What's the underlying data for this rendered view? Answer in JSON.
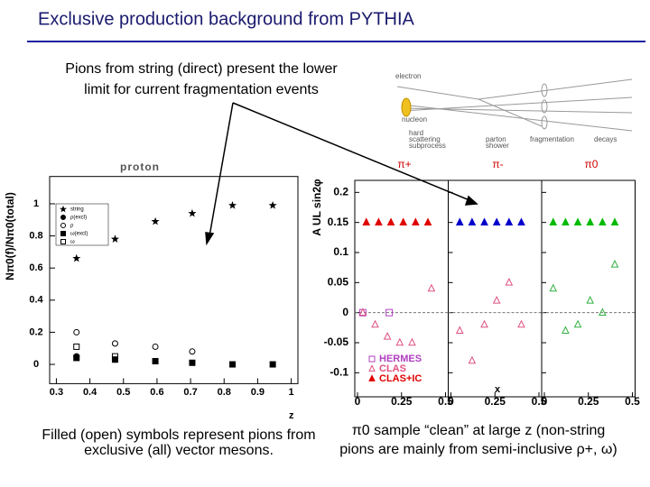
{
  "slide": {
    "title": "Exclusive production background from PYTHIA",
    "top_note": [
      "Pions from string (direct) present the lower",
      "limit for current fragmentation events"
    ],
    "left_note": [
      "Filled (open) symbols represent pions from",
      "exclusive (all) vector mesons."
    ],
    "right_note": [
      "π0 sample “clean” at large z (non-string",
      "pions are mainly from semi-inclusive ρ+, ω)"
    ]
  },
  "diagram": {
    "electron": "electron",
    "nucleon": "nucleon",
    "hard": [
      "hard",
      "scattering",
      "subprocess"
    ],
    "parton": [
      "parton",
      "shower"
    ],
    "fragmentation": "fragmentation",
    "decays": "decays"
  },
  "chart_data": [
    {
      "type": "scatter",
      "title": "proton",
      "xlabel": "z",
      "ylabel": "Nπ0(f)/Nπ0(total)",
      "xlim": [
        0.28,
        1.02
      ],
      "ylim": [
        -0.12,
        1.17
      ],
      "xticks": [
        0.3,
        0.4,
        0.5,
        0.6,
        0.7,
        0.8,
        0.9,
        1
      ],
      "yticks": [
        0,
        0.2,
        0.4,
        0.6,
        0.8,
        1
      ],
      "series": [
        {
          "name": "string",
          "marker": "star",
          "color": "#000000",
          "x": [
            0.36,
            0.475,
            0.595,
            0.705,
            0.825,
            0.945
          ],
          "values": [
            0.66,
            0.78,
            0.89,
            0.94,
            0.99,
            0.99
          ]
        },
        {
          "name": "ρ(excl)",
          "marker": "circle",
          "color": "#000000",
          "x": [
            0.36,
            0.475
          ],
          "values": [
            0.05,
            0.03
          ]
        },
        {
          "name": "ρ",
          "marker": "open-circle",
          "color": "#000000",
          "x": [
            0.36,
            0.475,
            0.595,
            0.705
          ],
          "values": [
            0.2,
            0.13,
            0.11,
            0.08
          ]
        },
        {
          "name": "ω(excl)",
          "marker": "square",
          "color": "#000000",
          "x": [
            0.36,
            0.475,
            0.595,
            0.705,
            0.825,
            0.945
          ],
          "values": [
            0.04,
            0.03,
            0.02,
            0.01,
            0,
            0
          ]
        },
        {
          "name": "ω",
          "marker": "open-square",
          "color": "#000000",
          "x": [
            0.36,
            0.475
          ],
          "values": [
            0.11,
            0.05
          ]
        }
      ]
    },
    {
      "type": "panels",
      "ylabel": "A UL sin2φ",
      "xlabel": "x",
      "xlim": [
        0,
        0.5
      ],
      "ylim": [
        -0.14,
        0.22
      ],
      "xticks": [
        0,
        0.25,
        0.5
      ],
      "yticks": [
        0.2,
        0.15,
        0.1,
        0.05,
        0,
        -0.05,
        -0.1
      ],
      "legend": [
        {
          "name": "HERMES",
          "marker": "open-square",
          "color": "#b040c0"
        },
        {
          "name": "CLAS",
          "marker": "open-triangle",
          "color": "#e05080"
        },
        {
          "name": "CLAS+IC",
          "marker": "triangle",
          "color": "#e00000"
        }
      ],
      "panels": [
        {
          "label": "π+",
          "series": [
            {
              "marker": "open-square",
              "color": "#b040c0",
              "x": [
                0.03,
                0.18
              ],
              "values": [
                0,
                0
              ]
            },
            {
              "marker": "open-triangle",
              "color": "#e05080",
              "x": [
                0.03,
                0.1,
                0.17,
                0.24,
                0.31,
                0.42
              ],
              "values": [
                0,
                -0.02,
                -0.04,
                -0.05,
                -0.05,
                0.04
              ]
            },
            {
              "marker": "triangle",
              "color": "#e00000",
              "x": [
                0.05,
                0.12,
                0.19,
                0.26,
                0.33,
                0.4
              ],
              "values": [
                0.15,
                0.15,
                0.15,
                0.15,
                0.15,
                0.15
              ]
            }
          ]
        },
        {
          "label": "π-",
          "series": [
            {
              "marker": "open-triangle",
              "color": "#e05080",
              "x": [
                0.05,
                0.12,
                0.19,
                0.26,
                0.33,
                0.4
              ],
              "values": [
                -0.03,
                -0.08,
                -0.02,
                0.02,
                0.05,
                -0.02
              ]
            },
            {
              "marker": "triangle",
              "color": "#0000cc",
              "x": [
                0.05,
                0.12,
                0.19,
                0.26,
                0.33,
                0.4
              ],
              "values": [
                0.15,
                0.15,
                0.15,
                0.15,
                0.15,
                0.15
              ]
            }
          ]
        },
        {
          "label": "π0",
          "series": [
            {
              "marker": "open-triangle",
              "color": "#30b040",
              "x": [
                0.05,
                0.12,
                0.19,
                0.26,
                0.33,
                0.4
              ],
              "values": [
                0.04,
                -0.03,
                -0.02,
                0.02,
                0,
                0.08
              ]
            },
            {
              "marker": "triangle",
              "color": "#00bb00",
              "x": [
                0.05,
                0.12,
                0.19,
                0.26,
                0.33,
                0.4
              ],
              "values": [
                0.15,
                0.15,
                0.15,
                0.15,
                0.15,
                0.15
              ]
            }
          ]
        }
      ]
    }
  ]
}
